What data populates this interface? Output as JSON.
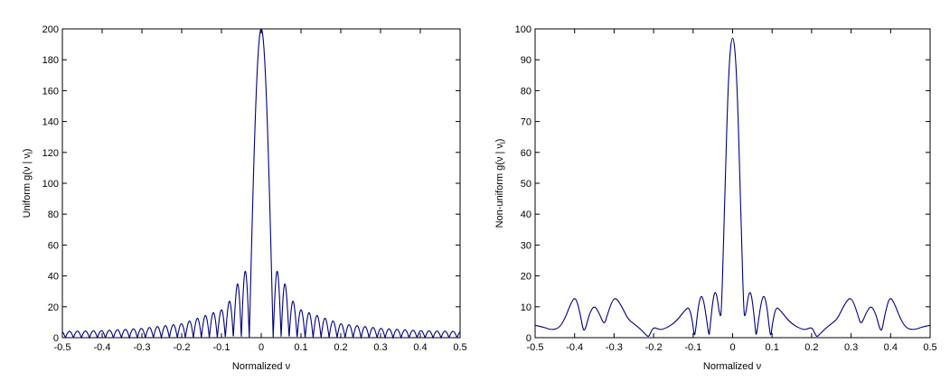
{
  "chart_data": [
    {
      "type": "line",
      "xlabel": "Normalized ν",
      "ylabel": "Uniform g(ν | ν",
      "ylabel_subscript": "l",
      "ylabel_close": ")",
      "xlim": [
        -0.5,
        0.5
      ],
      "ylim": [
        0,
        200
      ],
      "xticks": [
        -0.5,
        -0.4,
        -0.3,
        -0.2,
        -0.1,
        0,
        0.1,
        0.2,
        0.3,
        0.4,
        0.5
      ],
      "xtick_labels": [
        "-0.5",
        "-0.4",
        "-0.3",
        "-0.2",
        "-0.1",
        "0",
        "0.1",
        "0.2",
        "0.3",
        "0.4",
        "0.5"
      ],
      "yticks": [
        0,
        20,
        40,
        60,
        80,
        100,
        120,
        140,
        160,
        180,
        200
      ],
      "ytick_labels": [
        "0",
        "20",
        "40",
        "60",
        "80",
        "100",
        "120",
        "140",
        "160",
        "180",
        "200"
      ],
      "grid": false,
      "line_color": "#00007f",
      "series": [
        {
          "shape": "uniform-sinc",
          "peak_x": 0,
          "peak_y": 200,
          "null_spacing": 0.02,
          "lobe_peaks": [
            {
              "x": -0.047,
              "y": 43
            },
            {
              "x": 0.047,
              "y": 43
            },
            {
              "x": -0.075,
              "y": 25
            },
            {
              "x": 0.075,
              "y": 25
            },
            {
              "x": -0.1,
              "y": 18
            },
            {
              "x": 0.1,
              "y": 18
            },
            {
              "x": -0.2,
              "y": 9
            },
            {
              "x": 0.2,
              "y": 9
            },
            {
              "x": -0.3,
              "y": 6
            },
            {
              "x": 0.3,
              "y": 6
            },
            {
              "x": -0.4,
              "y": 4.5
            },
            {
              "x": 0.4,
              "y": 4.5
            },
            {
              "x": -0.5,
              "y": 4
            },
            {
              "x": 0.5,
              "y": 4
            }
          ]
        }
      ]
    },
    {
      "type": "line",
      "xlabel": "Normalized ν",
      "ylabel": "Non-uniform g(ν | ν",
      "ylabel_subscript": "l",
      "ylabel_close": ")",
      "xlim": [
        -0.5,
        0.5
      ],
      "ylim": [
        0,
        100
      ],
      "xticks": [
        -0.5,
        -0.4,
        -0.3,
        -0.2,
        -0.1,
        0,
        0.1,
        0.2,
        0.3,
        0.4,
        0.5
      ],
      "xtick_labels": [
        "-0.5",
        "-0.4",
        "-0.3",
        "-0.2",
        "-0.1",
        "0",
        "0.1",
        "0.2",
        "0.3",
        "0.4",
        "0.5"
      ],
      "yticks": [
        0,
        10,
        20,
        30,
        40,
        50,
        60,
        70,
        80,
        90,
        100
      ],
      "ytick_labels": [
        "0",
        "10",
        "20",
        "30",
        "40",
        "50",
        "60",
        "70",
        "80",
        "90",
        "100"
      ],
      "grid": false,
      "line_color": "#00007f",
      "series": [
        {
          "shape": "non-uniform",
          "points": [
            {
              "x": 0.0,
              "y": 100
            },
            {
              "x": 0.01,
              "y": 88
            },
            {
              "x": 0.02,
              "y": 45
            },
            {
              "x": 0.028,
              "y": 8
            },
            {
              "x": 0.032,
              "y": 6.5
            },
            {
              "x": 0.04,
              "y": 14
            },
            {
              "x": 0.046,
              "y": 15
            },
            {
              "x": 0.052,
              "y": 10
            },
            {
              "x": 0.058,
              "y": 2
            },
            {
              "x": 0.06,
              "y": 0.5
            },
            {
              "x": 0.066,
              "y": 6
            },
            {
              "x": 0.073,
              "y": 12
            },
            {
              "x": 0.08,
              "y": 14
            },
            {
              "x": 0.087,
              "y": 10
            },
            {
              "x": 0.093,
              "y": 3
            },
            {
              "x": 0.097,
              "y": 0
            },
            {
              "x": 0.101,
              "y": 5
            },
            {
              "x": 0.11,
              "y": 10
            },
            {
              "x": 0.12,
              "y": 9
            },
            {
              "x": 0.135,
              "y": 6.5
            },
            {
              "x": 0.15,
              "y": 4.5
            },
            {
              "x": 0.17,
              "y": 3
            },
            {
              "x": 0.185,
              "y": 2.5
            },
            {
              "x": 0.2,
              "y": 3.5
            },
            {
              "x": 0.208,
              "y": 1.5
            },
            {
              "x": 0.213,
              "y": 0.2
            },
            {
              "x": 0.22,
              "y": 1
            },
            {
              "x": 0.235,
              "y": 3
            },
            {
              "x": 0.25,
              "y": 4.5
            },
            {
              "x": 0.265,
              "y": 6
            },
            {
              "x": 0.28,
              "y": 10
            },
            {
              "x": 0.295,
              "y": 13
            },
            {
              "x": 0.305,
              "y": 12
            },
            {
              "x": 0.318,
              "y": 7
            },
            {
              "x": 0.325,
              "y": 4
            },
            {
              "x": 0.338,
              "y": 8
            },
            {
              "x": 0.35,
              "y": 10.5
            },
            {
              "x": 0.362,
              "y": 8
            },
            {
              "x": 0.372,
              "y": 3
            },
            {
              "x": 0.378,
              "y": 2
            },
            {
              "x": 0.386,
              "y": 8
            },
            {
              "x": 0.398,
              "y": 13.5
            },
            {
              "x": 0.41,
              "y": 11
            },
            {
              "x": 0.425,
              "y": 6
            },
            {
              "x": 0.44,
              "y": 3
            },
            {
              "x": 0.46,
              "y": 2.5
            },
            {
              "x": 0.48,
              "y": 3.5
            },
            {
              "x": 0.5,
              "y": 4
            }
          ],
          "symmetric": true
        }
      ]
    }
  ]
}
